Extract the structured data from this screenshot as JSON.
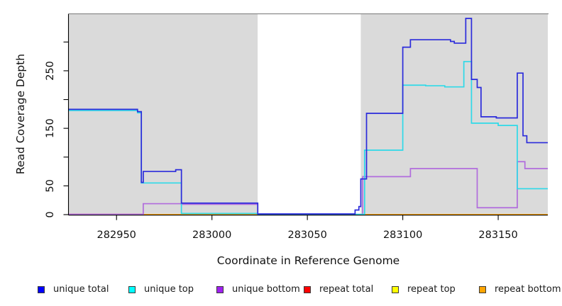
{
  "chart_data": {
    "type": "line",
    "step": true,
    "xlabel": "Coordinate in Reference Genome",
    "ylabel": "Read Coverage Depth",
    "xlim": [
      282925,
      283176
    ],
    "ylim": [
      0,
      349
    ],
    "x_ticks": [
      282950,
      283000,
      283050,
      283100,
      283150
    ],
    "y_ticks": [
      0,
      50,
      100,
      150,
      200,
      250,
      300
    ],
    "y_ticks_labeled": [
      0,
      50,
      150,
      250
    ],
    "grid": false,
    "legend_position": "bottom",
    "plot_border_top_color": "#8a8a8a",
    "background_bands": [
      {
        "from": 282925,
        "to": 283024,
        "color": "#dadada"
      },
      {
        "from": 283024,
        "to": 283078,
        "color": "#ffffff"
      },
      {
        "from": 283078,
        "to": 283176,
        "color": "#dadada"
      }
    ],
    "draw_order": [
      4,
      3,
      5,
      2,
      1,
      0
    ],
    "series": [
      {
        "name": "unique total",
        "legend_color": "#0000ff",
        "line_color": "#2b2bdb",
        "steps": [
          [
            282925,
            183
          ],
          [
            282961,
            179
          ],
          [
            282963,
            56
          ],
          [
            282964,
            75
          ],
          [
            282981,
            78
          ],
          [
            282984,
            20
          ],
          [
            283024,
            1.2
          ],
          [
            283075,
            8
          ],
          [
            283077,
            14
          ],
          [
            283078,
            62
          ],
          [
            283081,
            176
          ],
          [
            283100,
            291
          ],
          [
            283104,
            304
          ],
          [
            283125,
            301
          ],
          [
            283127,
            298
          ],
          [
            283133,
            341
          ],
          [
            283136,
            235
          ],
          [
            283139,
            221
          ],
          [
            283141,
            170
          ],
          [
            283149,
            168
          ],
          [
            283160,
            246
          ],
          [
            283163,
            137
          ],
          [
            283165,
            125
          ]
        ]
      },
      {
        "name": "unique top",
        "legend_color": "#00ffff",
        "line_color": "#2ed9e8",
        "steps": [
          [
            282925,
            181
          ],
          [
            282961,
            177
          ],
          [
            282963,
            55
          ],
          [
            282984,
            2
          ],
          [
            283024,
            0.5
          ],
          [
            283080,
            112
          ],
          [
            283100,
            225
          ],
          [
            283112,
            224
          ],
          [
            283122,
            222
          ],
          [
            283132,
            266
          ],
          [
            283136,
            159
          ],
          [
            283150,
            155
          ],
          [
            283160,
            45
          ]
        ]
      },
      {
        "name": "unique bottom",
        "legend_color": "#a020f0",
        "line_color": "#b16cdd",
        "steps": [
          [
            282925,
            0.5
          ],
          [
            282964,
            19
          ],
          [
            282984,
            18
          ],
          [
            283024,
            0.5
          ],
          [
            283079,
            66
          ],
          [
            283104,
            80
          ],
          [
            283139,
            12
          ],
          [
            283160,
            92
          ],
          [
            283164,
            80
          ]
        ]
      },
      {
        "name": "repeat total",
        "legend_color": "#ff0000",
        "line_color": "#db7093",
        "steps": [
          [
            282925,
            0.7
          ],
          [
            282964,
            0
          ]
        ]
      },
      {
        "name": "repeat top",
        "legend_color": "#ffff00",
        "line_color": "#f0f000",
        "steps": [
          [
            282925,
            0
          ]
        ]
      },
      {
        "name": "repeat bottom",
        "legend_color": "#ffa500",
        "line_color": "#ffa500",
        "steps": [
          [
            282925,
            0
          ]
        ]
      }
    ]
  }
}
